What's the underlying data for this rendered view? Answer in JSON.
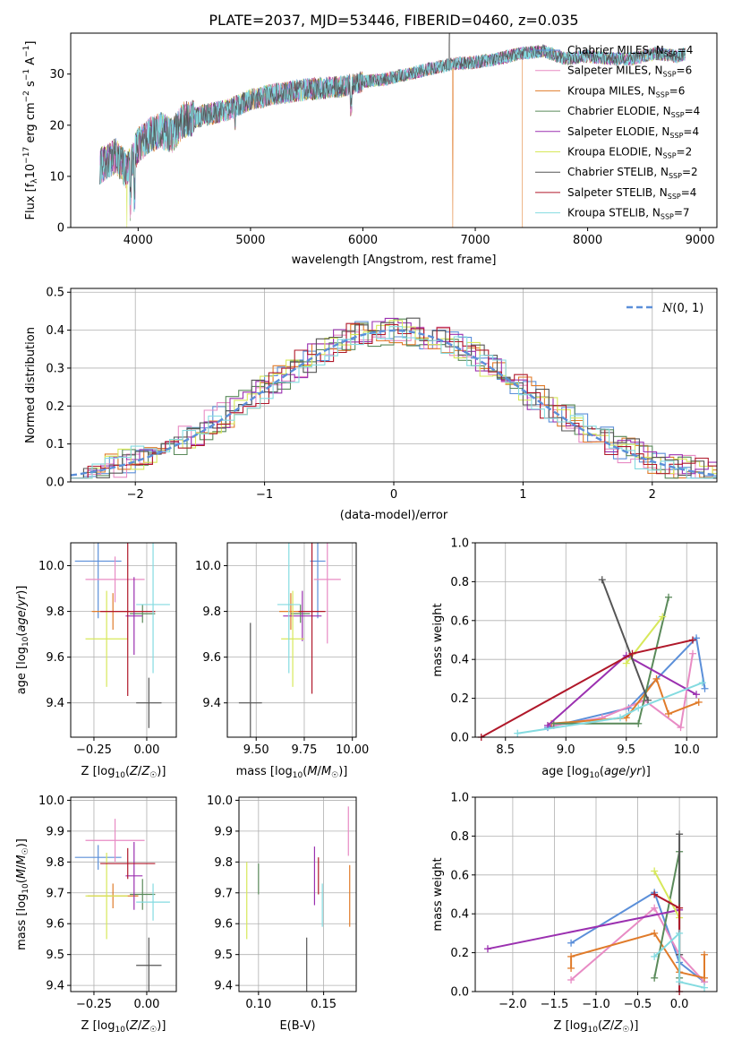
{
  "colors": {
    "Chabrier MILES": "#5b8fd9",
    "Salpeter MILES": "#e88bc4",
    "Kroupa MILES": "#e07b2a",
    "Chabrier ELODIE": "#5a8a5a",
    "Salpeter ELODIE": "#9b30b0",
    "Kroupa ELODIE": "#d7e85a",
    "Chabrier STELIB": "#555555",
    "Salpeter STELIB": "#b0182a",
    "Kroupa STELIB": "#84dbe0"
  },
  "chart_data": [
    {
      "id": "spectrum",
      "type": "line",
      "title": "PLATE=2037, MJD=53446, FIBERID=0460, z=0.035",
      "xlabel": "wavelength [Angstrom, rest frame]",
      "ylabel": "Flux [f_λ10^-17 erg cm^-2 s^-1 A^-1]",
      "xlim": [
        3400,
        9150
      ],
      "ylim": [
        0,
        38
      ],
      "xticks": [
        4000,
        5000,
        6000,
        7000,
        8000,
        9000
      ],
      "yticks": [
        0,
        10,
        20,
        30
      ],
      "legend_position": "top-right",
      "legend": [
        {
          "model": "Chabrier MILES",
          "prefix": "Chabrier MILES, N",
          "nssp": "4"
        },
        {
          "model": "Salpeter MILES",
          "prefix": "Salpeter MILES, N",
          "nssp": "6"
        },
        {
          "model": "Kroupa MILES",
          "prefix": "Kroupa MILES, N",
          "nssp": "6"
        },
        {
          "model": "Chabrier ELODIE",
          "prefix": "Chabrier ELODIE, N",
          "nssp": "4"
        },
        {
          "model": "Salpeter ELODIE",
          "prefix": "Salpeter ELODIE, N",
          "nssp": "4"
        },
        {
          "model": "Kroupa ELODIE",
          "prefix": "Kroupa ELODIE, N",
          "nssp": "2"
        },
        {
          "model": "Chabrier STELIB",
          "prefix": "Chabrier STELIB, N",
          "nssp": "2"
        },
        {
          "model": "Salpeter STELIB",
          "prefix": "Salpeter STELIB, N",
          "nssp": "4"
        },
        {
          "model": "Kroupa STELIB",
          "prefix": "Kroupa STELIB, N",
          "nssp": "7"
        }
      ],
      "legend_subscript": "SSP",
      "continuum": [
        [
          3660,
          12
        ],
        [
          3800,
          14
        ],
        [
          3900,
          11
        ],
        [
          4000,
          16
        ],
        [
          4100,
          18
        ],
        [
          4200,
          19
        ],
        [
          4300,
          18
        ],
        [
          4400,
          21
        ],
        [
          4600,
          22
        ],
        [
          4800,
          23
        ],
        [
          5000,
          25
        ],
        [
          5200,
          26
        ],
        [
          5500,
          27
        ],
        [
          5800,
          27.5
        ],
        [
          5900,
          28
        ],
        [
          6000,
          28.5
        ],
        [
          6200,
          29
        ],
        [
          6400,
          30
        ],
        [
          6600,
          31
        ],
        [
          6800,
          32
        ],
        [
          7000,
          32.3
        ],
        [
          7200,
          33
        ],
        [
          7400,
          34
        ],
        [
          7600,
          34.5
        ],
        [
          7800,
          33
        ],
        [
          8000,
          33.5
        ],
        [
          8200,
          33
        ],
        [
          8400,
          33
        ],
        [
          8600,
          34
        ],
        [
          8800,
          33.5
        ],
        [
          8870,
          34
        ]
      ],
      "features": [
        {
          "model": "Kroupa ELODIE",
          "wavelength": 3900,
          "drop_to": 0
        },
        {
          "model": "Chabrier STELIB",
          "wavelength": 6770,
          "spike_to": 38
        },
        {
          "model": "Kroupa MILES",
          "wavelength": 6800,
          "drop_to": 0
        },
        {
          "model": "Kroupa MILES",
          "wavelength": 7420,
          "drop_to": 0
        }
      ]
    },
    {
      "id": "residuals",
      "type": "line",
      "xlabel": "(data-model)/error",
      "ylabel": "Normed distribution",
      "xlim": [
        -2.5,
        2.5
      ],
      "ylim": [
        0,
        0.51
      ],
      "xticks": [
        -2,
        -1,
        0,
        1,
        2
      ],
      "xtick_labels": [
        "−2",
        "−1",
        "0",
        "1",
        "2"
      ],
      "yticks": [
        0.0,
        0.1,
        0.2,
        0.3,
        0.4,
        0.5
      ],
      "ytick_labels": [
        "0.0",
        "0.1",
        "0.2",
        "0.3",
        "0.4",
        "0.5"
      ],
      "reference_curve": {
        "name": "N(0,1)",
        "mean": 0,
        "sigma": 1,
        "style": "dashed"
      },
      "legend_position": "top-right",
      "histogram_bin_width": 0.1
    },
    {
      "id": "age-vs-Z",
      "type": "scatter",
      "xlabel": "Z [log10(Z/Z☉)]",
      "ylabel": "age [log10(age/yr)]",
      "xlim": [
        -0.36,
        0.14
      ],
      "ylim": [
        9.25,
        10.1
      ],
      "xticks": [
        -0.25,
        0.0
      ],
      "xtick_labels": [
        "−0.25",
        "0.00"
      ],
      "yticks": [
        9.4,
        9.6,
        9.8,
        10.0
      ],
      "ytick_labels": [
        "9.4",
        "9.6",
        "9.8",
        "10.0"
      ],
      "points": [
        {
          "model": "Chabrier MILES",
          "x": -0.23,
          "xerr": 0.11,
          "y": 10.02,
          "yerr": 0.25
        },
        {
          "model": "Salpeter MILES",
          "x": -0.15,
          "xerr": 0.14,
          "y": 9.94,
          "yerr": 0.1
        },
        {
          "model": "Kroupa MILES",
          "x": -0.16,
          "xerr": 0.1,
          "y": 9.8,
          "yerr": 0.08
        },
        {
          "model": "Chabrier ELODIE",
          "x": -0.02,
          "xerr": 0.06,
          "y": 9.79,
          "yerr": 0.04
        },
        {
          "model": "Salpeter ELODIE",
          "x": -0.06,
          "xerr": 0.04,
          "y": 9.78,
          "yerr": 0.17
        },
        {
          "model": "Kroupa ELODIE",
          "x": -0.19,
          "xerr": 0.1,
          "y": 9.68,
          "yerr": 0.21
        },
        {
          "model": "Chabrier STELIB",
          "x": 0.01,
          "xerr": 0.06,
          "y": 9.4,
          "yerr": 0.11
        },
        {
          "model": "Salpeter STELIB",
          "x": -0.09,
          "xerr": 0.13,
          "y": 9.8,
          "yerr": 0.37
        },
        {
          "model": "Kroupa STELIB",
          "x": 0.03,
          "xerr": 0.08,
          "y": 9.83,
          "yerr": 0.3
        }
      ]
    },
    {
      "id": "age-vs-mass",
      "type": "scatter",
      "xlabel": "mass [log10(M/M☉)]",
      "ylabel": "",
      "xlim": [
        9.35,
        10.02
      ],
      "ylim": [
        9.25,
        10.1
      ],
      "xticks": [
        9.5,
        9.75,
        10.0
      ],
      "xtick_labels": [
        "9.50",
        "9.75",
        "10.00"
      ],
      "yticks": [
        9.4,
        9.6,
        9.8,
        10.0
      ],
      "ytick_labels": [
        "9.4",
        "9.6",
        "9.8",
        "10.0"
      ],
      "points": [
        {
          "model": "Chabrier MILES",
          "x": 9.82,
          "xerr": 0.04,
          "y": 10.02,
          "yerr": 0.25
        },
        {
          "model": "Salpeter MILES",
          "x": 9.87,
          "xerr": 0.07,
          "y": 9.94,
          "yerr": 0.28
        },
        {
          "model": "Kroupa MILES",
          "x": 9.68,
          "xerr": 0.06,
          "y": 9.8,
          "yerr": 0.08
        },
        {
          "model": "Chabrier ELODIE",
          "x": 9.73,
          "xerr": 0.05,
          "y": 9.79,
          "yerr": 0.04
        },
        {
          "model": "Salpeter ELODIE",
          "x": 9.74,
          "xerr": 0.1,
          "y": 9.78,
          "yerr": 0.11
        },
        {
          "model": "Kroupa ELODIE",
          "x": 9.69,
          "xerr": 0.06,
          "y": 9.68,
          "yerr": 0.21
        },
        {
          "model": "Chabrier STELIB",
          "x": 9.47,
          "xerr": 0.06,
          "y": 9.4,
          "yerr": 0.35
        },
        {
          "model": "Salpeter STELIB",
          "x": 9.79,
          "xerr": 0.07,
          "y": 9.8,
          "yerr": 0.36
        },
        {
          "model": "Kroupa STELIB",
          "x": 9.67,
          "xerr": 0.06,
          "y": 9.83,
          "yerr": 0.3
        }
      ]
    },
    {
      "id": "weight-vs-age",
      "type": "line",
      "xlabel": "age [log10(age/yr)]",
      "ylabel": "mass weight",
      "xlim": [
        8.25,
        10.25
      ],
      "ylim": [
        0,
        1.0
      ],
      "xticks": [
        8.5,
        9.0,
        9.5,
        10.0
      ],
      "xtick_labels": [
        "8.5",
        "9.0",
        "9.5",
        "10.0"
      ],
      "yticks": [
        0.0,
        0.2,
        0.4,
        0.6,
        0.8,
        1.0
      ],
      "ytick_labels": [
        "0.0",
        "0.2",
        "0.4",
        "0.6",
        "0.8",
        "1.0"
      ],
      "series": [
        {
          "model": "Chabrier MILES",
          "x": [
            8.85,
            9.52,
            10.08,
            10.15
          ],
          "y": [
            0.05,
            0.15,
            0.51,
            0.25
          ]
        },
        {
          "model": "Salpeter MILES",
          "x": [
            8.9,
            9.3,
            9.65,
            9.95,
            10.05
          ],
          "y": [
            0.06,
            0.1,
            0.19,
            0.05,
            0.43
          ]
        },
        {
          "model": "Kroupa MILES",
          "x": [
            8.88,
            9.5,
            9.75,
            9.85,
            10.1
          ],
          "y": [
            0.07,
            0.1,
            0.3,
            0.12,
            0.18
          ]
        },
        {
          "model": "Chabrier ELODIE",
          "x": [
            8.9,
            9.6,
            9.85
          ],
          "y": [
            0.07,
            0.07,
            0.72
          ]
        },
        {
          "model": "Salpeter ELODIE",
          "x": [
            8.85,
            9.5,
            10.08
          ],
          "y": [
            0.06,
            0.42,
            0.22
          ]
        },
        {
          "model": "Kroupa ELODIE",
          "x": [
            9.5,
            9.8
          ],
          "y": [
            0.38,
            0.62
          ]
        },
        {
          "model": "Chabrier STELIB",
          "x": [
            9.3,
            9.68
          ],
          "y": [
            0.81,
            0.19
          ]
        },
        {
          "model": "Salpeter STELIB",
          "x": [
            8.3,
            9.55,
            10.05
          ],
          "y": [
            0.0,
            0.43,
            0.5
          ]
        },
        {
          "model": "Kroupa STELIB",
          "x": [
            8.6,
            9.45,
            9.6,
            10.13
          ],
          "y": [
            0.02,
            0.1,
            0.15,
            0.28
          ]
        }
      ]
    },
    {
      "id": "mass-vs-Z",
      "type": "scatter",
      "xlabel": "Z [log10(Z/Z☉)]",
      "ylabel": "mass [log10(M/M☉)]",
      "xlim": [
        -0.36,
        0.14
      ],
      "ylim": [
        9.38,
        10.01
      ],
      "xticks": [
        -0.25,
        0.0
      ],
      "xtick_labels": [
        "−0.25",
        "0.00"
      ],
      "yticks": [
        9.4,
        9.5,
        9.6,
        9.7,
        9.8,
        9.9,
        10.0
      ],
      "ytick_labels": [
        "9.4",
        "9.5",
        "9.6",
        "9.7",
        "9.8",
        "9.9",
        "10.0"
      ],
      "points": [
        {
          "model": "Chabrier MILES",
          "x": -0.23,
          "xerr": 0.11,
          "y": 9.815,
          "yerr": 0.04
        },
        {
          "model": "Salpeter MILES",
          "x": -0.15,
          "xerr": 0.14,
          "y": 9.87,
          "yerr": 0.07
        },
        {
          "model": "Kroupa MILES",
          "x": -0.16,
          "xerr": 0.12,
          "y": 9.69,
          "yerr": 0.04
        },
        {
          "model": "Chabrier ELODIE",
          "x": -0.02,
          "xerr": 0.06,
          "y": 9.695,
          "yerr": 0.05
        },
        {
          "model": "Salpeter ELODIE",
          "x": -0.06,
          "xerr": 0.04,
          "y": 9.755,
          "yerr": 0.11
        },
        {
          "model": "Kroupa ELODIE",
          "x": -0.19,
          "xerr": 0.1,
          "y": 9.69,
          "yerr": 0.14
        },
        {
          "model": "Chabrier STELIB",
          "x": 0.01,
          "xerr": 0.06,
          "y": 9.465,
          "yerr": 0.09
        },
        {
          "model": "Salpeter STELIB",
          "x": -0.09,
          "xerr": 0.13,
          "y": 9.795,
          "yerr": 0.05
        },
        {
          "model": "Kroupa STELIB",
          "x": 0.03,
          "xerr": 0.08,
          "y": 9.67,
          "yerr": 0.06
        }
      ]
    },
    {
      "id": "mass-vs-EBV",
      "type": "scatter",
      "xlabel": "E(B-V)",
      "ylabel": "",
      "xlim": [
        0.085,
        0.175
      ],
      "ylim": [
        9.38,
        10.01
      ],
      "xticks": [
        0.1,
        0.15
      ],
      "xtick_labels": [
        "0.10",
        "0.15"
      ],
      "yticks": [
        9.4,
        9.5,
        9.6,
        9.7,
        9.8,
        9.9,
        10.0
      ],
      "ytick_labels": [
        "9.4",
        "9.5",
        "9.6",
        "9.7",
        "9.8",
        "9.9",
        "10.0"
      ],
      "points": [
        {
          "model": "Kroupa ELODIE",
          "x": 0.091,
          "y": 9.675,
          "yerr": 0.125
        },
        {
          "model": "Chabrier ELODIE",
          "x": 0.1,
          "y": 9.745,
          "yerr": 0.05
        },
        {
          "model": "Chabrier STELIB",
          "x": 0.137,
          "y": 9.435,
          "yerr": 0.12
        },
        {
          "model": "Salpeter ELODIE",
          "x": 0.143,
          "y": 9.755,
          "yerr": 0.095
        },
        {
          "model": "Salpeter STELIB",
          "x": 0.146,
          "y": 9.755,
          "yerr": 0.06
        },
        {
          "model": "Kroupa STELIB",
          "x": 0.149,
          "y": 9.66,
          "yerr": 0.07
        },
        {
          "model": "Salpeter MILES",
          "x": 0.169,
          "y": 9.9,
          "yerr": 0.08
        },
        {
          "model": "Kroupa MILES",
          "x": 0.17,
          "y": 9.69,
          "yerr": 0.1
        }
      ]
    },
    {
      "id": "weight-vs-Z",
      "type": "line",
      "xlabel": "Z [log10(Z/Z☉)]",
      "ylabel": "mass weight",
      "xlim": [
        -2.45,
        0.45
      ],
      "ylim": [
        0,
        1.0
      ],
      "xticks": [
        -2.0,
        -1.5,
        -1.0,
        -0.5,
        0.0
      ],
      "xtick_labels": [
        "−2.0",
        "−1.5",
        "−1.0",
        "−0.5",
        "0.0"
      ],
      "yticks": [
        0.0,
        0.2,
        0.4,
        0.6,
        0.8,
        1.0
      ],
      "ytick_labels": [
        "0.0",
        "0.2",
        "0.4",
        "0.6",
        "0.8",
        "1.0"
      ],
      "series": [
        {
          "model": "Chabrier MILES",
          "x": [
            -1.3,
            -0.3,
            0.0,
            0.3
          ],
          "y": [
            0.25,
            0.51,
            0.15,
            0.05
          ]
        },
        {
          "model": "Salpeter MILES",
          "x": [
            -1.3,
            -0.3,
            0.0,
            0.3
          ],
          "y": [
            0.06,
            0.43,
            0.19,
            0.05
          ]
        },
        {
          "model": "Kroupa MILES",
          "x": [
            -1.3,
            -1.3,
            -0.3,
            0.0,
            0.3,
            0.3
          ],
          "y": [
            0.12,
            0.18,
            0.3,
            0.1,
            0.07,
            0.19
          ]
        },
        {
          "model": "Chabrier ELODIE",
          "x": [
            -0.3,
            0.0,
            0.0
          ],
          "y": [
            0.07,
            0.72,
            0.07
          ]
        },
        {
          "model": "Salpeter ELODIE",
          "x": [
            -2.3,
            0.0
          ],
          "y": [
            0.22,
            0.42
          ]
        },
        {
          "model": "Kroupa ELODIE",
          "x": [
            -0.3,
            0.0
          ],
          "y": [
            0.62,
            0.38
          ]
        },
        {
          "model": "Chabrier STELIB",
          "x": [
            0.0,
            0.0
          ],
          "y": [
            0.81,
            0.19
          ]
        },
        {
          "model": "Salpeter STELIB",
          "x": [
            -0.3,
            0.0,
            0.0
          ],
          "y": [
            0.5,
            0.43,
            0.0
          ]
        },
        {
          "model": "Kroupa STELIB",
          "x": [
            -0.3,
            0.0,
            0.0,
            0.3
          ],
          "y": [
            0.18,
            0.3,
            0.05,
            0.02
          ]
        }
      ]
    }
  ]
}
